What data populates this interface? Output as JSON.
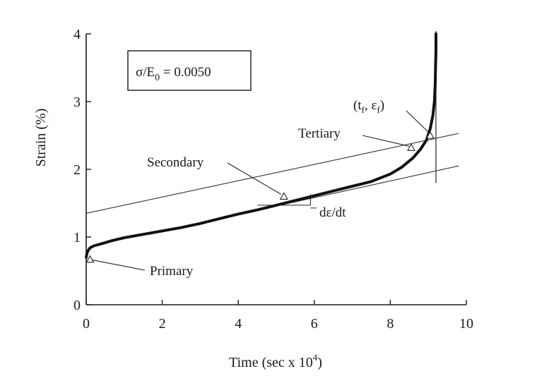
{
  "chart_data": {
    "type": "line",
    "title": "",
    "xlabel": "Time (sec x 10",
    "xlabel_sup": "4",
    "xlabel_suffix": ")",
    "ylabel": "Strain (%)",
    "xlim": [
      0,
      10
    ],
    "ylim": [
      0,
      4
    ],
    "x_ticks": [
      "0",
      "2",
      "4",
      "6",
      "8",
      "10"
    ],
    "y_ticks": [
      "0",
      "1",
      "2",
      "3",
      "4"
    ],
    "grid": false,
    "legend": "none",
    "box": {
      "sigma": "σ/E",
      "sub": "0",
      "value": " = 0.0050"
    },
    "series": [
      {
        "x": [
          0.0,
          0.02,
          0.05,
          0.1,
          0.2,
          0.4,
          0.7,
          1.0,
          1.5,
          2.0,
          2.5,
          3.0,
          3.5,
          4.0,
          4.5,
          5.0,
          5.5,
          6.0,
          6.5,
          7.0,
          7.5,
          8.0,
          8.3,
          8.6,
          8.8,
          8.95,
          9.05,
          9.12,
          9.16,
          9.18,
          9.19,
          9.2,
          9.2
        ],
        "y": [
          0.7,
          0.76,
          0.8,
          0.84,
          0.87,
          0.9,
          0.95,
          0.99,
          1.04,
          1.09,
          1.14,
          1.2,
          1.27,
          1.34,
          1.4,
          1.47,
          1.54,
          1.61,
          1.68,
          1.75,
          1.82,
          1.93,
          2.03,
          2.17,
          2.3,
          2.43,
          2.6,
          2.8,
          3.0,
          3.25,
          3.5,
          3.75,
          4.0
        ]
      }
    ],
    "reference_lines": [
      {
        "x": [
          0,
          9.8
        ],
        "y": [
          1.35,
          2.53
        ]
      },
      {
        "x": [
          2.5,
          9.8
        ],
        "y": [
          1.15,
          2.05
        ]
      }
    ],
    "rupture_marker": {
      "x": 9.2,
      "y_min": 1.8,
      "y_max": 4.0
    },
    "annotations": {
      "primary": {
        "label": "Primary",
        "point": [
          0.1,
          0.67
        ]
      },
      "secondary": {
        "label": "Secondary",
        "point": [
          5.2,
          1.6
        ]
      },
      "tertiary": {
        "label": "Tertiary",
        "point": [
          8.55,
          2.32
        ]
      },
      "failure": {
        "label_pre": "(t",
        "sub1": "f",
        "label_mid": ", ε",
        "sub2": "f",
        "label_post": ")",
        "point": [
          9.05,
          2.5
        ]
      },
      "rate": {
        "label": "dε/dt",
        "point": [
          5.2,
          1.47
        ]
      }
    }
  }
}
